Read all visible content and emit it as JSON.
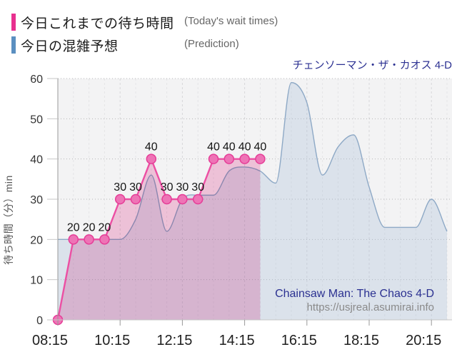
{
  "legend": {
    "items": [
      {
        "id": "actual",
        "swatch_color": "#e8308f",
        "label_jp": "今日これまでの待ち時間",
        "label_en": "(Today's wait times)"
      },
      {
        "id": "prediction",
        "swatch_color": "#5a8fc0",
        "label_jp": "今日の混雑予想",
        "label_en": "(Prediction)"
      }
    ]
  },
  "chart_title": "チェンソーマン・ザ・カオス 4-D",
  "watermark": {
    "title": "Chainsaw Man: The Chaos 4-D",
    "url": "https://usjreal.asumirai.info"
  },
  "palette": {
    "plot_bg": "#f3f3f4",
    "grid_h": "#b7b7b7",
    "grid_v_minor": "#e4e4e7",
    "grid_v_major": "#d7d7da",
    "y_axis_line": "#9a9a9a",
    "x_axis_line": "#c6c6c6",
    "tick_mark": "#999999",
    "x_tick_label_color": "#1f1f1f",
    "y_tick_label_color": "#333333",
    "y_axis_title_color": "#555555",
    "point_label_color": "#141414"
  },
  "chart_data": {
    "type": "area",
    "title": "チェンソーマン・ザ・カオス 4-D",
    "x_axis": {
      "ticks": [
        "08:15",
        "10:15",
        "12:15",
        "14:15",
        "16:15",
        "18:15",
        "20:15"
      ],
      "start": "08:15",
      "end": "20:45",
      "minor_grid_interval_min": 30
    },
    "y_axis": {
      "title": "待ち時間（分）min",
      "ticks": [
        0,
        10,
        20,
        30,
        40,
        50,
        60
      ],
      "range": [
        0,
        60
      ]
    },
    "legend_position": "top-left",
    "grid": true,
    "series": [
      {
        "name": "今日これまでの待ち時間 (Today's wait times)",
        "interpolation": "linear",
        "line_color": "#ec4fa3",
        "marker_fill": "#ee74b6",
        "marker_stroke": "#e53d97",
        "area_fill": "#f9cbe1",
        "area_blend": "multiply",
        "show_markers": true,
        "show_point_labels": true,
        "points": [
          {
            "t": "08:15",
            "v": 0
          },
          {
            "t": "08:45",
            "v": 20
          },
          {
            "t": "09:15",
            "v": 20
          },
          {
            "t": "09:45",
            "v": 20
          },
          {
            "t": "10:15",
            "v": 30
          },
          {
            "t": "10:45",
            "v": 30
          },
          {
            "t": "11:15",
            "v": 40
          },
          {
            "t": "11:45",
            "v": 30
          },
          {
            "t": "12:15",
            "v": 30
          },
          {
            "t": "12:45",
            "v": 30
          },
          {
            "t": "13:15",
            "v": 40
          },
          {
            "t": "13:45",
            "v": 40
          },
          {
            "t": "14:15",
            "v": 40
          },
          {
            "t": "14:45",
            "v": 40
          }
        ]
      },
      {
        "name": "今日の混雑予想 (Prediction)",
        "interpolation": "smooth",
        "line_color": "#8ea9c6",
        "area_fill": "rgba(165,190,215,0.30)",
        "area_blend": "normal",
        "show_markers": false,
        "show_point_labels": false,
        "points": [
          {
            "t": "08:15",
            "v": 20
          },
          {
            "t": "08:45",
            "v": 20
          },
          {
            "t": "09:15",
            "v": 20
          },
          {
            "t": "09:45",
            "v": 20
          },
          {
            "t": "10:15",
            "v": 20
          },
          {
            "t": "10:45",
            "v": 25
          },
          {
            "t": "11:15",
            "v": 36
          },
          {
            "t": "11:45",
            "v": 22
          },
          {
            "t": "12:15",
            "v": 30
          },
          {
            "t": "12:45",
            "v": 31
          },
          {
            "t": "13:15",
            "v": 31
          },
          {
            "t": "13:45",
            "v": 37
          },
          {
            "t": "14:15",
            "v": 38
          },
          {
            "t": "14:45",
            "v": 37
          },
          {
            "t": "15:15",
            "v": 34
          },
          {
            "t": "15:45",
            "v": 59
          },
          {
            "t": "16:15",
            "v": 54
          },
          {
            "t": "16:45",
            "v": 36
          },
          {
            "t": "17:15",
            "v": 43
          },
          {
            "t": "17:45",
            "v": 46
          },
          {
            "t": "18:15",
            "v": 33
          },
          {
            "t": "18:45",
            "v": 23
          },
          {
            "t": "19:15",
            "v": 23
          },
          {
            "t": "19:45",
            "v": 23
          },
          {
            "t": "20:15",
            "v": 30
          },
          {
            "t": "20:45",
            "v": 22
          }
        ]
      }
    ]
  }
}
